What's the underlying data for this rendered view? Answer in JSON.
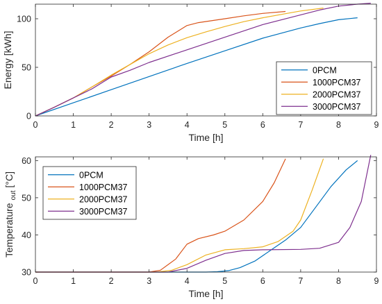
{
  "chart_data": [
    {
      "type": "line",
      "xlabel": "Time [h]",
      "ylabel": "Energy [kWh]",
      "xlim": [
        0,
        9
      ],
      "ylim": [
        0,
        115
      ],
      "xticks": [
        0,
        1,
        2,
        3,
        4,
        5,
        6,
        7,
        8,
        9
      ],
      "yticks": [
        0,
        50,
        100
      ],
      "grid": false,
      "legend": "bottom-right",
      "series": [
        {
          "name": "0PCM",
          "color": "#0072BD",
          "x": [
            0,
            1,
            2,
            3,
            4,
            5,
            6,
            7,
            7.5,
            8,
            8.5
          ],
          "y": [
            0,
            13.5,
            27,
            40.5,
            54,
            67,
            80,
            90.5,
            95,
            99,
            101
          ]
        },
        {
          "name": "1000PCM37",
          "color": "#D95319",
          "x": [
            0,
            0.5,
            1,
            1.5,
            2,
            2.5,
            3,
            3.5,
            4,
            4.3,
            5,
            5.5,
            6,
            6.6
          ],
          "y": [
            0,
            9,
            18.5,
            30,
            41,
            53,
            66,
            81,
            93,
            96,
            100,
            103,
            105.5,
            107.5
          ]
        },
        {
          "name": "2000PCM37",
          "color": "#EDB120",
          "x": [
            0,
            0.5,
            1,
            1.5,
            2,
            2.5,
            3,
            3.5,
            4,
            4.5,
            5,
            5.5,
            6,
            6.5,
            7,
            7.6
          ],
          "y": [
            0,
            9,
            18.5,
            30,
            42,
            53,
            64,
            73,
            80.5,
            86.5,
            92,
            97,
            101,
            104.5,
            108,
            111
          ]
        },
        {
          "name": "3000PCM37",
          "color": "#7E2F8E",
          "x": [
            0,
            0.5,
            1,
            1.5,
            2,
            2.5,
            3,
            4,
            5,
            6,
            7,
            7.5,
            8,
            8.5,
            8.85
          ],
          "y": [
            0,
            9,
            18.5,
            28,
            40,
            47,
            55,
            68,
            81,
            94,
            104,
            109,
            113,
            115,
            116
          ]
        }
      ]
    },
    {
      "type": "line",
      "xlabel": "Time [h]",
      "ylabel": "Temperature",
      "ylabel_sub": "out",
      "ylabel_unit": "[°C]",
      "xlim": [
        0,
        9
      ],
      "ylim": [
        30,
        61
      ],
      "xticks": [
        0,
        1,
        2,
        3,
        4,
        5,
        6,
        7,
        8,
        9
      ],
      "yticks": [
        30,
        40,
        50,
        60
      ],
      "grid": false,
      "legend": "top-left",
      "series": [
        {
          "name": "0PCM",
          "color": "#0072BD",
          "x": [
            0,
            4.5,
            4.8,
            5.1,
            5.4,
            5.8,
            6.2,
            6.6,
            7,
            7.4,
            7.8,
            8.2,
            8.5
          ],
          "y": [
            30,
            30,
            30.1,
            30.4,
            31.2,
            33,
            35.8,
            38.6,
            42,
            47.5,
            53,
            57.5,
            60
          ]
        },
        {
          "name": "1000PCM37",
          "color": "#D95319",
          "x": [
            0,
            3,
            3.3,
            3.7,
            4,
            4.3,
            4.7,
            5,
            5.5,
            6,
            6.3,
            6.6
          ],
          "y": [
            30,
            30,
            30.5,
            33.5,
            37.5,
            39,
            40,
            41,
            44,
            49,
            54,
            60.5
          ]
        },
        {
          "name": "2000PCM37",
          "color": "#EDB120",
          "x": [
            0,
            3.2,
            3.6,
            4,
            4.5,
            5,
            5.5,
            6,
            6.4,
            6.8,
            7,
            7.3,
            7.6
          ],
          "y": [
            30,
            30,
            30.5,
            32,
            34.6,
            36,
            36.3,
            36.8,
            38.2,
            41,
            44,
            52,
            60.5
          ]
        },
        {
          "name": "3000PCM37",
          "color": "#7E2F8E",
          "x": [
            0,
            3.5,
            4,
            4.5,
            5,
            5.5,
            6,
            7,
            7.5,
            8,
            8.3,
            8.6,
            8.85
          ],
          "y": [
            30,
            30,
            31,
            33.2,
            35,
            35.8,
            36,
            36.1,
            36.4,
            38,
            42,
            49,
            61.5
          ]
        }
      ]
    }
  ]
}
